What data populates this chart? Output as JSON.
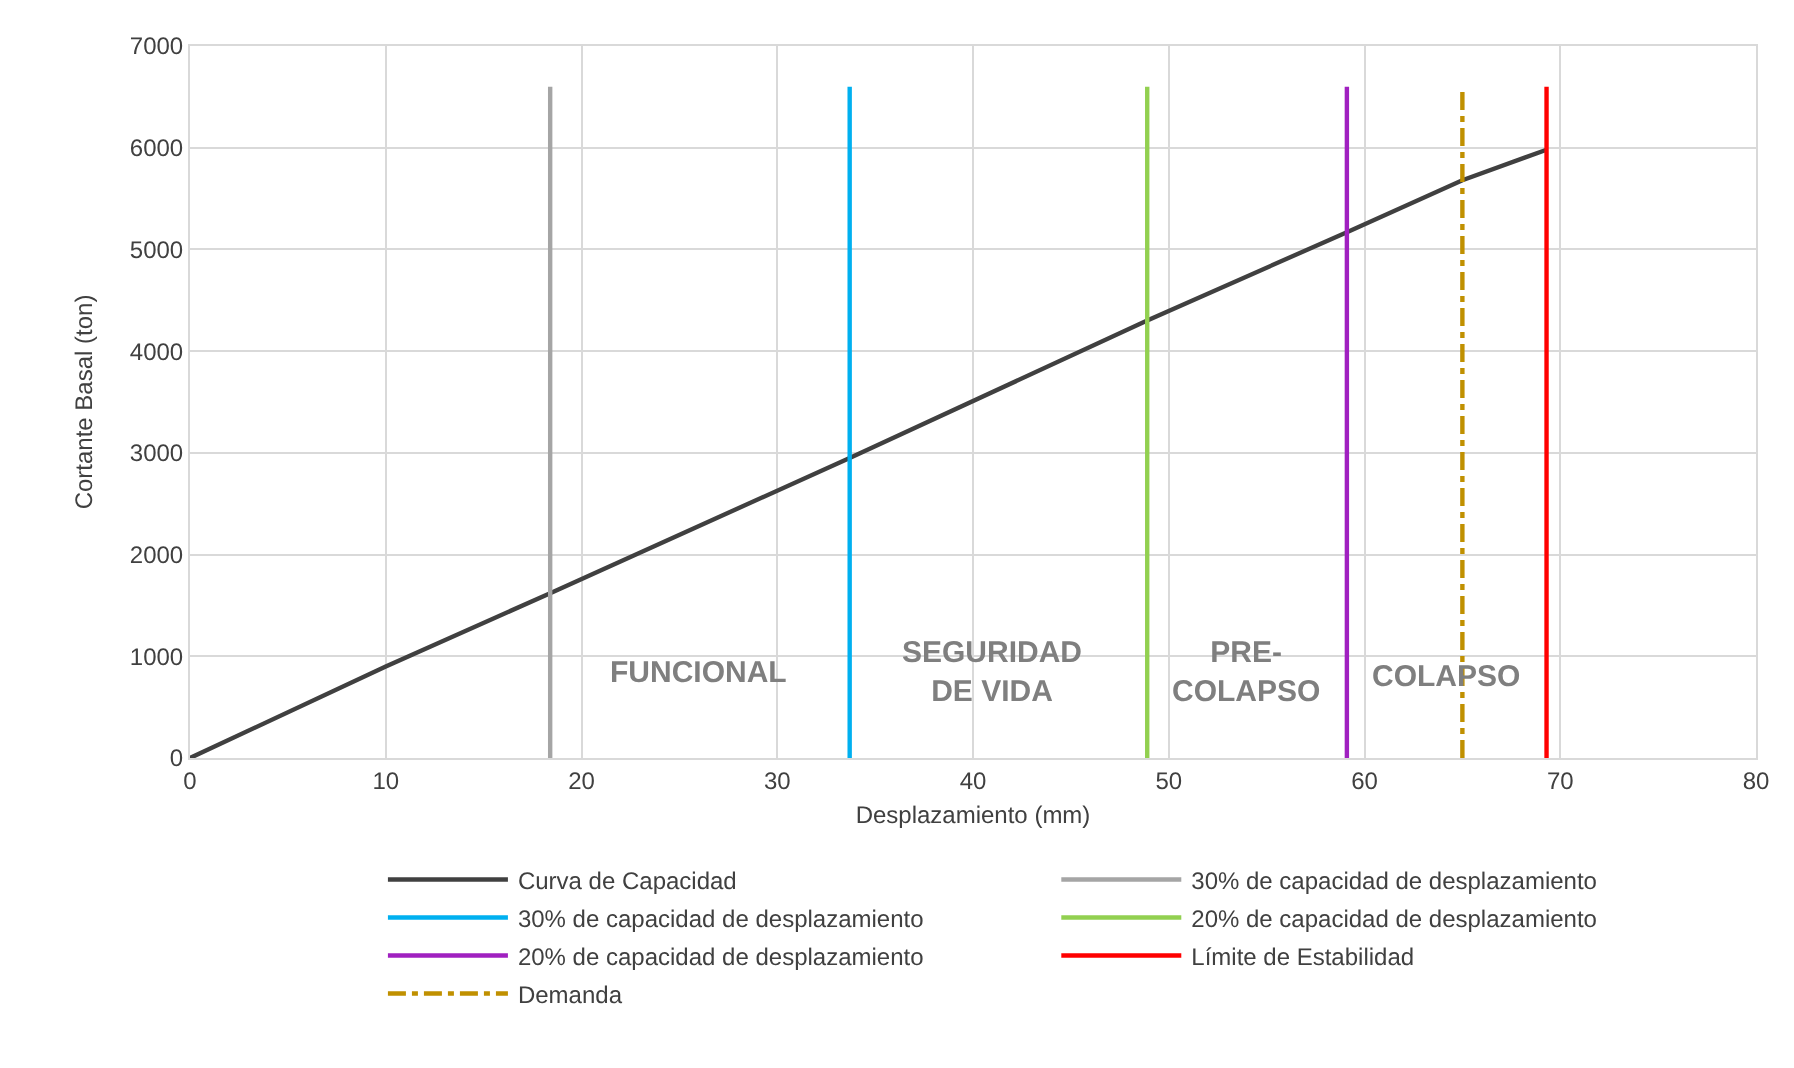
{
  "chart_data": {
    "type": "line",
    "xlabel": "Desplazamiento (mm)",
    "ylabel": "Cortante Basal (ton)",
    "xlim": [
      0,
      80
    ],
    "xticks": [
      0,
      10,
      20,
      30,
      40,
      50,
      60,
      70,
      80
    ],
    "ylim": [
      0,
      7000
    ],
    "yticks": [
      0,
      1000,
      2000,
      3000,
      4000,
      5000,
      6000,
      7000
    ],
    "grid": true,
    "legend": "bottom",
    "marker": "none",
    "series": [
      {
        "name": "Curva de Capacidad",
        "color": "#404040",
        "x": [
          0,
          10,
          18.4,
          33.7,
          48.9,
          59.1,
          65,
          69.3
        ],
        "values": [
          0,
          900,
          1620,
          2950,
          4300,
          5170,
          5680,
          5980
        ]
      },
      {
        "name": "30% de capacidad de desplazamiento",
        "color": "#a5a5a5",
        "x": [
          18.4,
          18.4
        ],
        "values": [
          0,
          6600
        ]
      },
      {
        "name": "30% de capacidad de desplazamiento",
        "color": "#00b0f0",
        "x": [
          33.7,
          33.7
        ],
        "values": [
          0,
          6600
        ]
      },
      {
        "name": "20% de capacidad de desplazamiento",
        "color": "#92d050",
        "x": [
          48.9,
          48.9
        ],
        "values": [
          0,
          6600
        ]
      },
      {
        "name": "20% de capacidad de desplazamiento",
        "color": "#a020c0",
        "x": [
          59.1,
          59.1
        ],
        "values": [
          0,
          6600
        ]
      },
      {
        "name": "Límite de Estabilidad",
        "color": "#ff0000",
        "x": [
          69.3,
          69.3
        ],
        "values": [
          0,
          6600
        ]
      },
      {
        "name": "Demanda",
        "color": "#c09000",
        "x": [
          65,
          65
        ],
        "values": [
          0,
          6600
        ],
        "line_style": "dashdot"
      }
    ],
    "annotations": [
      "FUNCIONAL",
      "SEGURIDAD\nDE VIDA",
      "PRE-\nCOLAPSO",
      "COLAPSO"
    ]
  }
}
